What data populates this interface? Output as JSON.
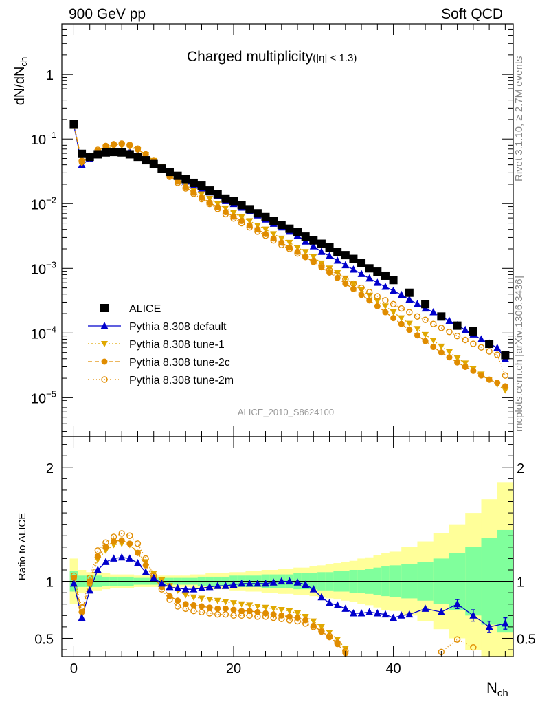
{
  "header": {
    "energy": "900 GeV pp",
    "category": "Soft QCD"
  },
  "side_notes": {
    "rivet": "Rivet 3.1.10, ≥ 2.7M events",
    "mcplots": "mcplots.cern.ch [arXiv:1306.3436]"
  },
  "chart_data": [
    {
      "type": "scatter",
      "title": "Charged multiplicity",
      "title_cut": "(|η| < 1.3)",
      "ylabel": "dN/dN",
      "ylabel_sub": "ch",
      "analysis": "ALICE_2010_S8624100",
      "yscale": "log",
      "xlim": [
        -1.5,
        55
      ],
      "ylim": [
        2.5e-06,
        6
      ],
      "ytick_labels": [
        "1",
        "10",
        "10",
        "10",
        "10",
        "10"
      ],
      "ytick_exponents": [
        "",
        "−1",
        "−2",
        "−3",
        "−4",
        "−5"
      ],
      "x": [
        0,
        1,
        2,
        3,
        4,
        5,
        6,
        7,
        8,
        9,
        10,
        11,
        12,
        13,
        14,
        15,
        16,
        17,
        18,
        19,
        20,
        21,
        22,
        23,
        24,
        25,
        26,
        27,
        28,
        29,
        30,
        31,
        32,
        33,
        34,
        35,
        36,
        37,
        38,
        39,
        40,
        41,
        42,
        43,
        44,
        45,
        46,
        47,
        48,
        49,
        50,
        51,
        52,
        53,
        54
      ],
      "series": [
        {
          "name": "ALICE",
          "style": "data",
          "x": [
            0,
            1,
            2,
            3,
            4,
            5,
            6,
            7,
            8,
            9,
            10,
            11,
            12,
            13,
            14,
            15,
            16,
            17,
            18,
            19,
            20,
            21,
            22,
            23,
            24,
            25,
            26,
            27,
            28,
            29,
            30,
            31,
            32,
            33,
            34,
            35,
            36,
            37,
            38,
            39,
            40,
            42,
            44,
            46,
            48,
            50,
            52,
            54
          ],
          "values": [
            0.17,
            0.059,
            0.053,
            0.058,
            0.062,
            0.063,
            0.062,
            0.058,
            0.053,
            0.047,
            0.041,
            0.035,
            0.031,
            0.027,
            0.024,
            0.021,
            0.019,
            0.016,
            0.014,
            0.012,
            0.011,
            0.0095,
            0.0082,
            0.0071,
            0.0062,
            0.0054,
            0.0047,
            0.0041,
            0.0036,
            0.0031,
            0.0027,
            0.0024,
            0.0021,
            0.0018,
            0.0016,
            0.0014,
            0.0012,
            0.001,
            0.00089,
            0.00077,
            0.00066,
            0.00042,
            0.00028,
            0.00018,
            0.00013,
            0.000106,
            6.8e-05,
            4.55e-05
          ]
        },
        {
          "name": "Pythia 8.308 default",
          "style": "default",
          "values": [
            0.165,
            0.04,
            0.049,
            0.058,
            0.064,
            0.066,
            0.066,
            0.063,
            0.058,
            0.051,
            0.043,
            0.036,
            0.03,
            0.026,
            0.022,
            0.019,
            0.017,
            0.015,
            0.013,
            0.011,
            0.0099,
            0.0087,
            0.0076,
            0.0066,
            0.0057,
            0.0049,
            0.0043,
            0.0037,
            0.0032,
            0.0026,
            0.0022,
            0.0018,
            0.00155,
            0.00132,
            0.00112,
            0.00096,
            0.00082,
            0.0007,
            0.0006,
            0.00052,
            0.00045,
            0.00039,
            0.00033,
            0.00028,
            0.00024,
            0.00021,
            0.00018,
            0.000155,
            0.000132,
            0.000112,
            9.5e-05,
            8e-05,
            6.9e-05,
            5.9e-05,
            4e-05
          ]
        },
        {
          "name": "Pythia 8.308 tune-1",
          "style": "tune1",
          "values": [
            0.17,
            0.042,
            0.051,
            0.063,
            0.072,
            0.077,
            0.079,
            0.076,
            0.068,
            0.057,
            0.046,
            0.037,
            0.029,
            0.024,
            0.02,
            0.016,
            0.014,
            0.012,
            0.0099,
            0.0085,
            0.0072,
            0.0062,
            0.0054,
            0.0046,
            0.004,
            0.0034,
            0.0029,
            0.0025,
            0.0021,
            0.0018,
            0.0015,
            0.0012,
            0.001,
            0.00085,
            0.0007,
            0.00057,
            0.00046,
            0.00038,
            0.00031,
            0.00026,
            0.00021,
            0.00017,
            0.00014,
            0.000116,
            9.4e-05,
            7.7e-05,
            6.2e-05,
            5.1e-05,
            4.1e-05,
            3.4e-05,
            2.8e-05,
            2.3e-05,
            1.9e-05,
            1.6e-05,
            1.3e-05
          ]
        },
        {
          "name": "Pythia 8.308 tune-2c",
          "style": "tune2c",
          "values": [
            0.17,
            0.044,
            0.053,
            0.066,
            0.076,
            0.081,
            0.083,
            0.079,
            0.069,
            0.057,
            0.045,
            0.035,
            0.027,
            0.022,
            0.018,
            0.0148,
            0.0124,
            0.0104,
            0.0088,
            0.0074,
            0.0063,
            0.0054,
            0.0046,
            0.004,
            0.0034,
            0.0029,
            0.0025,
            0.0021,
            0.0018,
            0.0015,
            0.00125,
            0.00104,
            0.00086,
            0.00071,
            0.00058,
            0.00048,
            0.00039,
            0.00032,
            0.00026,
            0.00021,
            0.00017,
            0.000138,
            0.000112,
            9.2e-05,
            7.5e-05,
            6.1e-05,
            5e-05,
            4.2e-05,
            3.5e-05,
            3e-05,
            2.6e-05,
            2.2e-05,
            1.9e-05,
            1.7e-05,
            1.5e-05
          ]
        },
        {
          "name": "Pythia 8.308 tune-2m",
          "style": "tune2m",
          "values": [
            0.175,
            0.046,
            0.055,
            0.068,
            0.078,
            0.083,
            0.085,
            0.081,
            0.071,
            0.058,
            0.046,
            0.035,
            0.026,
            0.021,
            0.0172,
            0.0142,
            0.0118,
            0.0099,
            0.0083,
            0.0069,
            0.0059,
            0.005,
            0.0043,
            0.0037,
            0.0032,
            0.0027,
            0.0023,
            0.002,
            0.0017,
            0.0015,
            0.0013,
            0.0011,
            0.00094,
            0.0008,
            0.00068,
            0.00058,
            0.0005,
            0.00043,
            0.00037,
            0.00032,
            0.00028,
            0.00024,
            0.00021,
            0.00018,
            0.00016,
            0.000138,
            0.00012,
            0.000104,
            9e-05,
            7.8e-05,
            6.8e-05,
            6e-05,
            5.2e-05,
            4.6e-05,
            2.2e-05
          ]
        }
      ],
      "legend": {
        "position": "bottom-left",
        "entries": [
          "ALICE",
          "Pythia 8.308 default",
          "Pythia 8.308 tune-1",
          "Pythia 8.308 tune-2c",
          "Pythia 8.308 tune-2m"
        ]
      }
    },
    {
      "type": "line",
      "ylabel": "Ratio to ALICE",
      "xlabel": "N",
      "xlabel_sub": "ch",
      "xlim": [
        -1.5,
        55
      ],
      "ylim": [
        0.34,
        2.27
      ],
      "xticks": [
        0,
        20,
        40
      ],
      "yticks": [
        0.5,
        1,
        2
      ],
      "ytick_labels": [
        "0.5",
        "1",
        "2"
      ],
      "reference": 1,
      "bands": {
        "x_edges": [
          -0.5,
          0.5,
          1.5,
          2.5,
          3.5,
          4.5,
          5.5,
          6.5,
          7.5,
          8.5,
          9.5,
          10.5,
          11.5,
          12.5,
          13.5,
          14.5,
          15.5,
          16.5,
          17.5,
          18.5,
          19.5,
          20.5,
          21.5,
          22.5,
          23.5,
          24.5,
          25.5,
          26.5,
          27.5,
          28.5,
          29.5,
          30.5,
          31.5,
          32.5,
          33.5,
          34.5,
          35.5,
          36.5,
          37.5,
          38.5,
          39.5,
          41,
          43,
          45,
          47,
          49,
          51,
          53,
          55
        ],
        "green_halfwidth": [
          0.09,
          0.05,
          0.05,
          0.05,
          0.04,
          0.04,
          0.04,
          0.04,
          0.03,
          0.03,
          0.03,
          0.03,
          0.03,
          0.03,
          0.03,
          0.03,
          0.04,
          0.04,
          0.04,
          0.04,
          0.05,
          0.05,
          0.05,
          0.05,
          0.06,
          0.06,
          0.06,
          0.06,
          0.07,
          0.07,
          0.07,
          0.08,
          0.08,
          0.09,
          0.09,
          0.1,
          0.1,
          0.11,
          0.12,
          0.13,
          0.14,
          0.15,
          0.17,
          0.2,
          0.25,
          0.3,
          0.38,
          0.45
        ],
        "yellow_halfwidth": [
          0.2,
          0.1,
          0.08,
          0.08,
          0.07,
          0.06,
          0.06,
          0.06,
          0.05,
          0.05,
          0.05,
          0.05,
          0.05,
          0.05,
          0.05,
          0.06,
          0.06,
          0.07,
          0.07,
          0.07,
          0.08,
          0.08,
          0.09,
          0.09,
          0.1,
          0.1,
          0.11,
          0.11,
          0.12,
          0.12,
          0.13,
          0.14,
          0.15,
          0.16,
          0.17,
          0.18,
          0.2,
          0.21,
          0.23,
          0.25,
          0.26,
          0.3,
          0.35,
          0.42,
          0.5,
          0.6,
          0.72,
          0.87
        ]
      },
      "series": [
        {
          "name": "Pythia 8.308 default",
          "style": "default",
          "x": [
            0,
            1,
            2,
            3,
            4,
            5,
            6,
            7,
            8,
            9,
            10,
            11,
            12,
            13,
            14,
            15,
            16,
            17,
            18,
            19,
            20,
            21,
            22,
            23,
            24,
            25,
            26,
            27,
            28,
            29,
            30,
            31,
            32,
            33,
            34,
            35,
            36,
            37,
            38,
            39,
            40,
            41,
            42,
            44,
            46,
            48,
            50,
            52,
            54
          ],
          "values": [
            0.98,
            0.68,
            0.92,
            1.1,
            1.17,
            1.2,
            1.21,
            1.2,
            1.16,
            1.08,
            1.03,
            0.98,
            0.95,
            0.94,
            0.93,
            0.93,
            0.94,
            0.95,
            0.96,
            0.96,
            0.97,
            0.98,
            0.98,
            0.98,
            0.98,
            0.99,
            1,
            1,
            0.99,
            0.97,
            0.93,
            0.86,
            0.81,
            0.79,
            0.76,
            0.72,
            0.72,
            0.73,
            0.72,
            0.71,
            0.68,
            0.7,
            0.71,
            0.76,
            0.73,
            0.8,
            0.7,
            0.6,
            0.63
          ],
          "errors": {
            "x": [
              48,
              50,
              52,
              54
            ],
            "err": [
              0.04,
              0.05,
              0.05,
              0.05
            ]
          }
        },
        {
          "name": "Pythia 8.308 tune-1",
          "style": "tune1",
          "x": [
            0,
            1,
            2,
            3,
            4,
            5,
            6,
            7,
            8,
            9,
            10,
            11,
            12,
            13,
            14,
            15,
            16,
            17,
            18,
            19,
            20,
            21,
            22,
            23,
            24,
            25,
            26,
            27,
            28,
            29,
            30,
            31,
            32,
            33,
            34
          ],
          "values": [
            1.02,
            0.71,
            0.96,
            1.19,
            1.27,
            1.32,
            1.33,
            1.32,
            1.25,
            1.17,
            1.07,
            1.01,
            0.96,
            0.92,
            0.88,
            0.86,
            0.85,
            0.84,
            0.83,
            0.82,
            0.81,
            0.8,
            0.79,
            0.78,
            0.77,
            0.76,
            0.75,
            0.74,
            0.72,
            0.69,
            0.65,
            0.6,
            0.55,
            0.49,
            0.41
          ]
        },
        {
          "name": "Pythia 8.308 tune-2c",
          "style": "tune2c",
          "x": [
            0,
            1,
            2,
            3,
            4,
            5,
            6,
            7,
            8,
            9,
            10,
            11,
            12,
            13,
            14,
            15,
            16,
            17,
            18,
            19,
            20,
            21,
            22,
            23,
            24,
            25,
            26,
            27,
            28,
            29,
            30,
            31,
            32,
            33,
            34
          ],
          "values": [
            1.03,
            0.73,
            1.0,
            1.22,
            1.3,
            1.35,
            1.36,
            1.33,
            1.25,
            1.14,
            1.03,
            0.95,
            0.87,
            0.83,
            0.8,
            0.79,
            0.78,
            0.77,
            0.76,
            0.76,
            0.75,
            0.74,
            0.74,
            0.73,
            0.72,
            0.71,
            0.7,
            0.69,
            0.68,
            0.66,
            0.61,
            0.56,
            0.51,
            0.45,
            0.37
          ]
        },
        {
          "name": "Pythia 8.308 tune-2m",
          "style": "tune2m",
          "x": [
            0,
            1,
            2,
            3,
            4,
            5,
            6,
            7,
            8,
            9,
            10,
            11,
            12,
            13,
            14,
            15,
            16,
            17,
            18,
            19,
            20,
            21,
            22,
            23,
            24,
            25,
            26,
            27,
            28,
            29,
            30,
            31,
            32,
            33,
            34,
            46,
            48,
            50
          ],
          "values": [
            1.05,
            0.77,
            1.03,
            1.27,
            1.34,
            1.39,
            1.42,
            1.4,
            1.33,
            1.2,
            1.05,
            0.93,
            0.84,
            0.78,
            0.76,
            0.74,
            0.73,
            0.72,
            0.71,
            0.71,
            0.7,
            0.7,
            0.7,
            0.69,
            0.69,
            0.68,
            0.67,
            0.66,
            0.65,
            0.63,
            0.6,
            0.56,
            0.52,
            0.46,
            0.39,
            0.38,
            0.49,
            0.42
          ]
        }
      ]
    }
  ],
  "styles": {
    "data": {
      "color": "#000000",
      "marker": "square"
    },
    "default": {
      "color": "#0000cc",
      "marker": "triangle",
      "dash": ""
    },
    "tune1": {
      "color": "#e0a800",
      "marker": "triangle-down",
      "dash": "2,3"
    },
    "tune2c": {
      "color": "#e08c00",
      "marker": "circle",
      "dash": "6,4"
    },
    "tune2m": {
      "color": "#e08c00",
      "marker": "open-circle",
      "dash": "1,3"
    },
    "band_green": "#80ff9c",
    "band_yellow": "#ffff99"
  }
}
